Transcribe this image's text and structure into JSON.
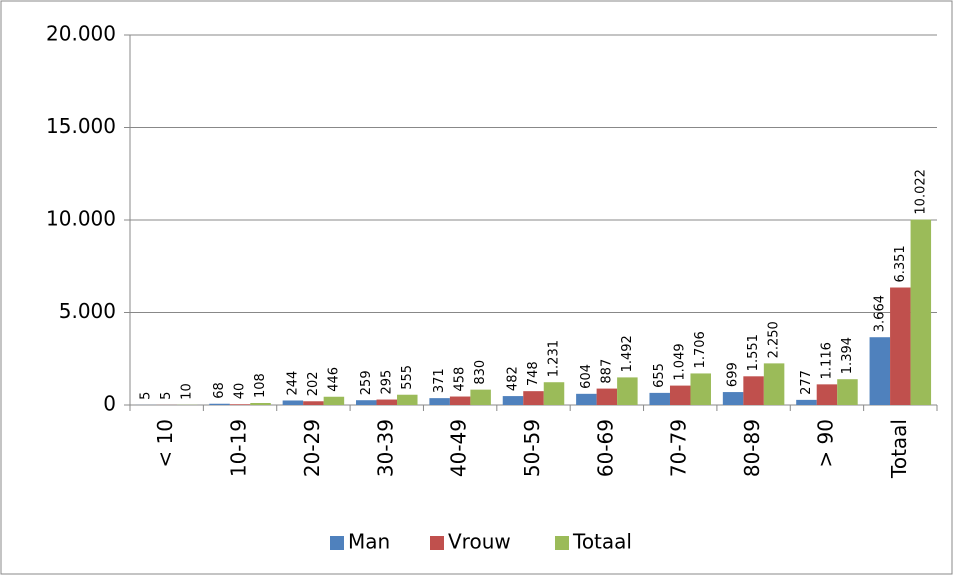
{
  "chart_data": {
    "type": "bar",
    "categories": [
      "< 10",
      "10-19",
      "20-29",
      "30-39",
      "40-49",
      "50-59",
      "60-69",
      "70-79",
      "80-89",
      "> 90",
      "Totaal"
    ],
    "series": [
      {
        "name": "Man",
        "color": "#4f81bd",
        "values": [
          5,
          68,
          244,
          259,
          371,
          482,
          604,
          655,
          699,
          277,
          3664
        ],
        "value_labels": [
          "5",
          "68",
          "244",
          "259",
          "371",
          "482",
          "604",
          "655",
          "699",
          "277",
          "3.664"
        ]
      },
      {
        "name": "Vrouw",
        "color": "#c0504d",
        "values": [
          5,
          40,
          202,
          295,
          458,
          748,
          887,
          1049,
          1551,
          1116,
          6351
        ],
        "value_labels": [
          "5",
          "40",
          "202",
          "295",
          "458",
          "748",
          "887",
          "1.049",
          "1.551",
          "1.116",
          "6.351"
        ]
      },
      {
        "name": "Totaal",
        "color": "#9bbb59",
        "values": [
          10,
          108,
          446,
          555,
          830,
          1231,
          1492,
          1706,
          2250,
          1394,
          10022
        ],
        "value_labels": [
          "10",
          "108",
          "446",
          "555",
          "830",
          "1.231",
          "1.492",
          "1.706",
          "2.250",
          "1.394",
          "10.022"
        ]
      }
    ],
    "ylim": [
      0,
      20000
    ],
    "yticks": [
      0,
      {
        "value": 5000,
        "label": "5.000"
      },
      {
        "value": 10000,
        "label": "10.000"
      },
      {
        "value": 15000,
        "label": "15.000"
      },
      {
        "value": 20000,
        "label": "20.000"
      }
    ],
    "grid": true,
    "legend": "bottom"
  }
}
